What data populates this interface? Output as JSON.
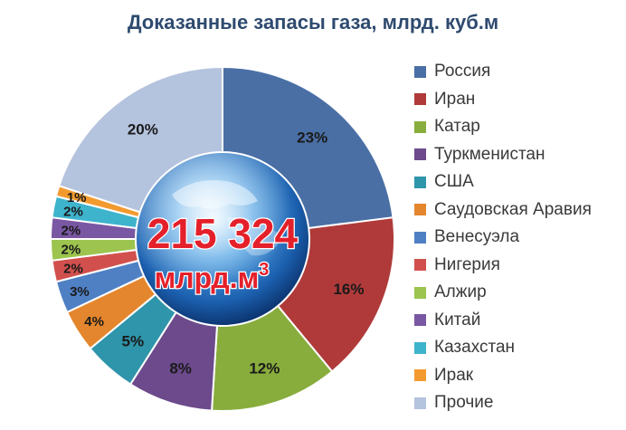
{
  "chart_data": {
    "type": "pie",
    "title": "Доказанные запасы газа, млрд. куб.м",
    "center_value": "215 324",
    "center_unit": "млрд.м",
    "center_unit_sup": "3",
    "categories": [
      "Россия",
      "Иран",
      "Катар",
      "Туркменистан",
      "США",
      "Саудовская Аравия",
      "Венесуэла",
      "Нигерия",
      "Алжир",
      "Китай",
      "Казахстан",
      "Ирак",
      "Прочие"
    ],
    "values": [
      23,
      16,
      12,
      8,
      5,
      4,
      3,
      2,
      2,
      2,
      2,
      1,
      20
    ],
    "labels": [
      "23%",
      "16%",
      "12%",
      "8%",
      "5%",
      "4%",
      "3%",
      "2%",
      "2%",
      "2%",
      "2%",
      "1%",
      "20%"
    ],
    "colors": [
      "#4a6fa5",
      "#b03a3a",
      "#88ad3d",
      "#6c4a8c",
      "#2f95aa",
      "#e4862d",
      "#4f80c4",
      "#d1504d",
      "#9cc44e",
      "#7a57a3",
      "#3eb3cc",
      "#f39a2e",
      "#b4c3de"
    ],
    "legend_position": "right"
  }
}
